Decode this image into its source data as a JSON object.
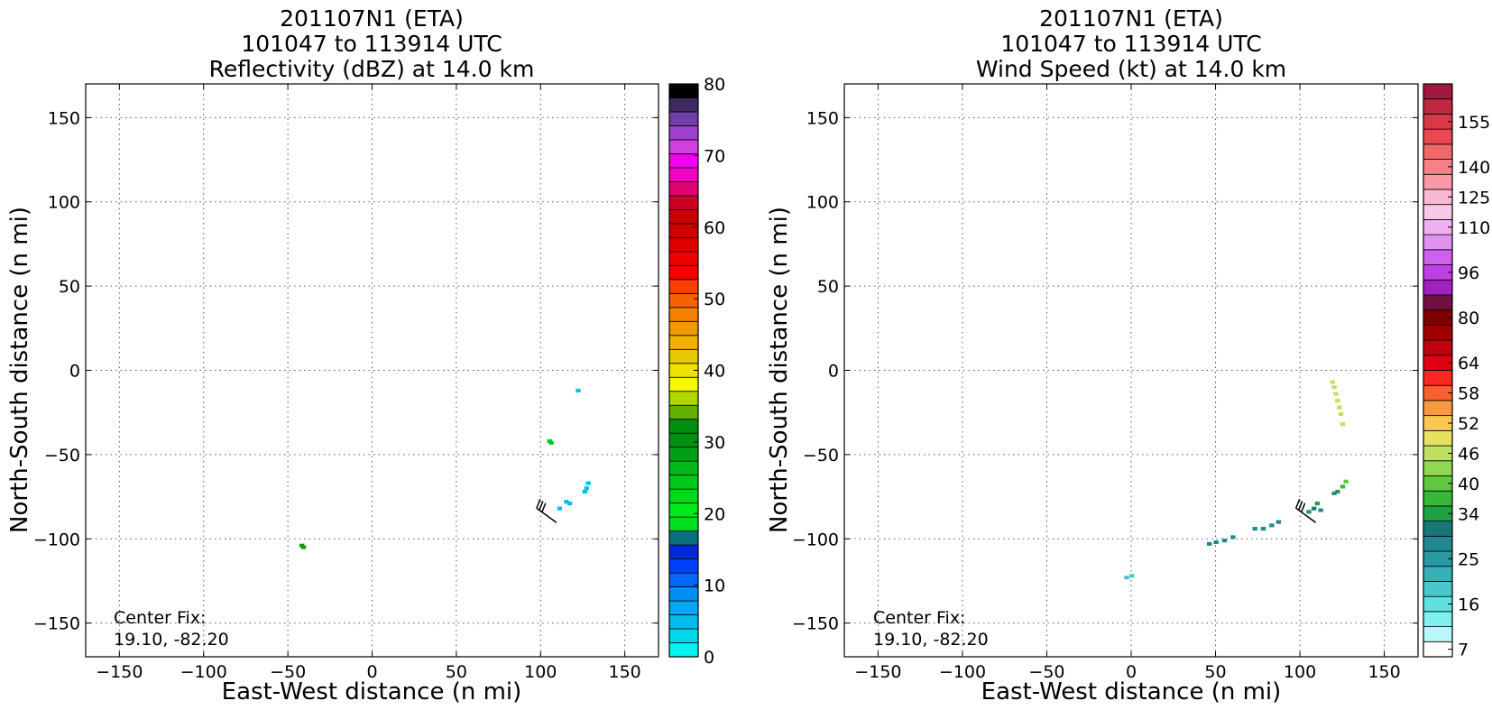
{
  "chart_data": [
    {
      "type": "heatmap",
      "title_lines": [
        "201107N1 (ETA)",
        "101047 to 113914 UTC",
        "Reflectivity (dBZ) at 14.0 km"
      ],
      "xlabel": "East-West distance (n mi)",
      "ylabel": "North-South distance (n mi)",
      "xlim": [
        -170,
        170
      ],
      "ylim": [
        -170,
        170
      ],
      "xticks": [
        -150,
        -100,
        -50,
        0,
        50,
        100,
        150
      ],
      "yticks": [
        -150,
        -100,
        -50,
        0,
        50,
        100,
        150
      ],
      "xtick_labels": [
        "−150",
        "−100",
        "−50",
        "0",
        "50",
        "100",
        "150"
      ],
      "ytick_labels": [
        "−150",
        "−100",
        "−50",
        "0",
        "50",
        "100",
        "150"
      ],
      "grid": true,
      "center_fix_label": "Center Fix:",
      "center_fix_value": "19.10, -82.20",
      "colorbar": {
        "min": 0,
        "max": 80,
        "tick_values": [
          0,
          10,
          20,
          30,
          40,
          50,
          60,
          70,
          80
        ],
        "tick_labels": [
          "0",
          "10",
          "20",
          "30",
          "40",
          "50",
          "60",
          "70",
          "80"
        ],
        "colors": [
          "#00f5f0",
          "#00d8ec",
          "#00bdee",
          "#00a8f4",
          "#0090f4",
          "#0068f8",
          "#0040f8",
          "#0028d8",
          "#087080",
          "#00e020",
          "#00e818",
          "#00d818",
          "#00c818",
          "#00b818",
          "#00a010",
          "#009010",
          "#009010",
          "#60b000",
          "#b0d800",
          "#f8f800",
          "#f0e000",
          "#e8c800",
          "#f0b000",
          "#f09800",
          "#f88000",
          "#f86000",
          "#f84000",
          "#f80000",
          "#f00000",
          "#e00000",
          "#d00000",
          "#c80000",
          "#c80020",
          "#e00070",
          "#f000c0",
          "#f000f0",
          "#d040e0",
          "#a040d0",
          "#7040a8",
          "#402860",
          "#000000"
        ]
      },
      "cells": [
        {
          "x": 122,
          "y": -12,
          "value": 5
        },
        {
          "x": 105,
          "y": -42,
          "value": 25
        },
        {
          "x": 106,
          "y": -43,
          "value": 25
        },
        {
          "x": 128,
          "y": -67,
          "value": 5
        },
        {
          "x": 127,
          "y": -70,
          "value": 5
        },
        {
          "x": 126,
          "y": -72,
          "value": 5
        },
        {
          "x": 115,
          "y": -78,
          "value": 5
        },
        {
          "x": 117,
          "y": -79,
          "value": 5
        },
        {
          "x": 111,
          "y": -82,
          "value": 5
        },
        {
          "x": -42,
          "y": -104,
          "value": 28
        },
        {
          "x": -41,
          "y": -105,
          "value": 28
        }
      ],
      "wind_barb": {
        "x": 103,
        "y": -85
      }
    },
    {
      "type": "heatmap",
      "title_lines": [
        "201107N1 (ETA)",
        "101047 to 113914 UTC",
        "Wind Speed (kt) at 14.0 km"
      ],
      "xlabel": "East-West distance (n mi)",
      "ylabel": "North-South distance (n mi)",
      "xlim": [
        -170,
        170
      ],
      "ylim": [
        -170,
        170
      ],
      "xticks": [
        -150,
        -100,
        -50,
        0,
        50,
        100,
        150
      ],
      "yticks": [
        -150,
        -100,
        -50,
        0,
        50,
        100,
        150
      ],
      "xtick_labels": [
        "−150",
        "−100",
        "−50",
        "0",
        "50",
        "100",
        "150"
      ],
      "ytick_labels": [
        "−150",
        "−100",
        "−50",
        "0",
        "50",
        "100",
        "150"
      ],
      "grid": true,
      "center_fix_label": "Center Fix:",
      "center_fix_value": "19.10, -82.20",
      "colorbar": {
        "levels": [
          7,
          10,
          13,
          16,
          19,
          22,
          25,
          28,
          31,
          34,
          37,
          40,
          43,
          46,
          49,
          52,
          55,
          58,
          61,
          64,
          72,
          76,
          80,
          88,
          92,
          96,
          104,
          108,
          110,
          120,
          125,
          130,
          140,
          145,
          150,
          155,
          160
        ],
        "tick_values": [
          7,
          16,
          25,
          34,
          40,
          46,
          52,
          58,
          64,
          80,
          96,
          110,
          125,
          140,
          155
        ],
        "tick_labels": [
          "7",
          "16",
          "25",
          "34",
          "40",
          "46",
          "52",
          "58",
          "64",
          "80",
          "96",
          "110",
          "125",
          "140",
          "155"
        ],
        "colors": [
          "#ffffff",
          "#b8f8f8",
          "#80f0f0",
          "#60e0e0",
          "#48c8cc",
          "#38b0b8",
          "#289aa4",
          "#208890",
          "#187878",
          "#20a040",
          "#38b838",
          "#60c840",
          "#90d850",
          "#c0e060",
          "#e8e060",
          "#f8c850",
          "#f89840",
          "#f86030",
          "#f82820",
          "#e00010",
          "#c00010",
          "#a00000",
          "#800000",
          "#701040",
          "#a020c0",
          "#c040e8",
          "#d060f0",
          "#e090f0",
          "#f0b0f0",
          "#f8c8e8",
          "#f8b8d0",
          "#f898a8",
          "#f88088",
          "#f06868",
          "#e84850",
          "#d83848",
          "#c02840",
          "#a01840"
        ]
      },
      "cells": [
        {
          "x": 119,
          "y": -7,
          "value": 46
        },
        {
          "x": 120,
          "y": -10,
          "value": 46
        },
        {
          "x": 121,
          "y": -14,
          "value": 46
        },
        {
          "x": 122,
          "y": -18,
          "value": 46
        },
        {
          "x": 123,
          "y": -22,
          "value": 46
        },
        {
          "x": 124,
          "y": -26,
          "value": 46
        },
        {
          "x": 125,
          "y": -32,
          "value": 46
        },
        {
          "x": 127,
          "y": -66,
          "value": 40
        },
        {
          "x": 125,
          "y": -69,
          "value": 37
        },
        {
          "x": 122,
          "y": -72,
          "value": 34
        },
        {
          "x": 120,
          "y": -73,
          "value": 28
        },
        {
          "x": 110,
          "y": -79,
          "value": 34
        },
        {
          "x": 108,
          "y": -82,
          "value": 31
        },
        {
          "x": 112,
          "y": -83,
          "value": 28
        },
        {
          "x": 105,
          "y": -84,
          "value": 28
        },
        {
          "x": 87,
          "y": -90,
          "value": 28
        },
        {
          "x": 83,
          "y": -92,
          "value": 28
        },
        {
          "x": 78,
          "y": -94,
          "value": 28
        },
        {
          "x": 73,
          "y": -94,
          "value": 28
        },
        {
          "x": 60,
          "y": -99,
          "value": 28
        },
        {
          "x": 55,
          "y": -101,
          "value": 28
        },
        {
          "x": 50,
          "y": -102,
          "value": 28
        },
        {
          "x": 46,
          "y": -103,
          "value": 28
        },
        {
          "x": 0,
          "y": -122,
          "value": 19
        },
        {
          "x": -3,
          "y": -123,
          "value": 19
        }
      ],
      "wind_barb": {
        "x": 103,
        "y": -85
      }
    }
  ]
}
